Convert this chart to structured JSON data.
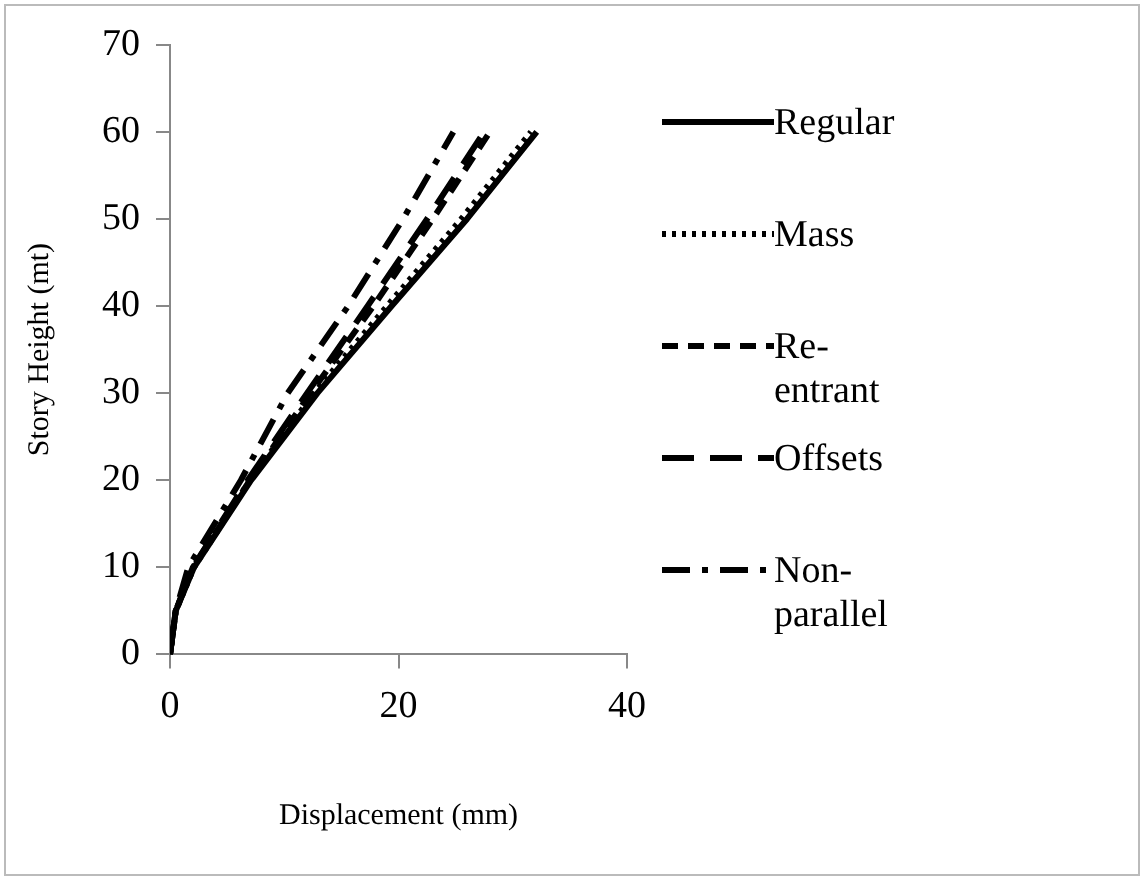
{
  "chart_data": {
    "type": "line",
    "xlabel": "Displacement (mm)",
    "ylabel": "Story Height (mt)",
    "xlim": [
      0,
      40
    ],
    "xticks": [
      0,
      20,
      40
    ],
    "ylim": [
      0,
      70
    ],
    "yticks": [
      0,
      10,
      20,
      30,
      40,
      50,
      60,
      70
    ],
    "legend": "right",
    "marker": "none",
    "series": [
      {
        "name": "Regular",
        "color": "#000000",
        "line_style": "solid",
        "x": [
          0,
          0.5,
          2.1,
          7.1,
          12.9,
          19.4,
          26,
          32.1
        ],
        "values": [
          0,
          5,
          10,
          20,
          30,
          40,
          50,
          60
        ]
      },
      {
        "name": "Mass",
        "color": "#000000",
        "line_style": "dotted",
        "x": [
          0,
          0.5,
          2.1,
          7,
          12.6,
          19,
          25.5,
          31.6
        ],
        "values": [
          0,
          5,
          10,
          20,
          30,
          40,
          50,
          60
        ]
      },
      {
        "name": "Re-entrant",
        "color": "#000000",
        "line_style": "dashed",
        "x": [
          0,
          0.5,
          2,
          7,
          12.3,
          17.8,
          23,
          28
        ],
        "values": [
          0,
          5,
          10,
          20,
          30,
          40,
          50,
          60
        ]
      },
      {
        "name": "Offsets",
        "color": "#000000",
        "line_style": "longdash",
        "x": [
          0,
          0.5,
          2,
          6.8,
          12,
          17.3,
          22.5,
          27.5
        ],
        "values": [
          0,
          5,
          10,
          20,
          30,
          40,
          50,
          60
        ]
      },
      {
        "name": "Non-parallel",
        "color": "#000000",
        "line_style": "dashdot",
        "x": [
          0,
          0.5,
          1.6,
          6.2,
          10.3,
          15.6,
          20.4,
          24.8
        ],
        "values": [
          0,
          5,
          10,
          20,
          30,
          40,
          50,
          60
        ]
      }
    ]
  }
}
